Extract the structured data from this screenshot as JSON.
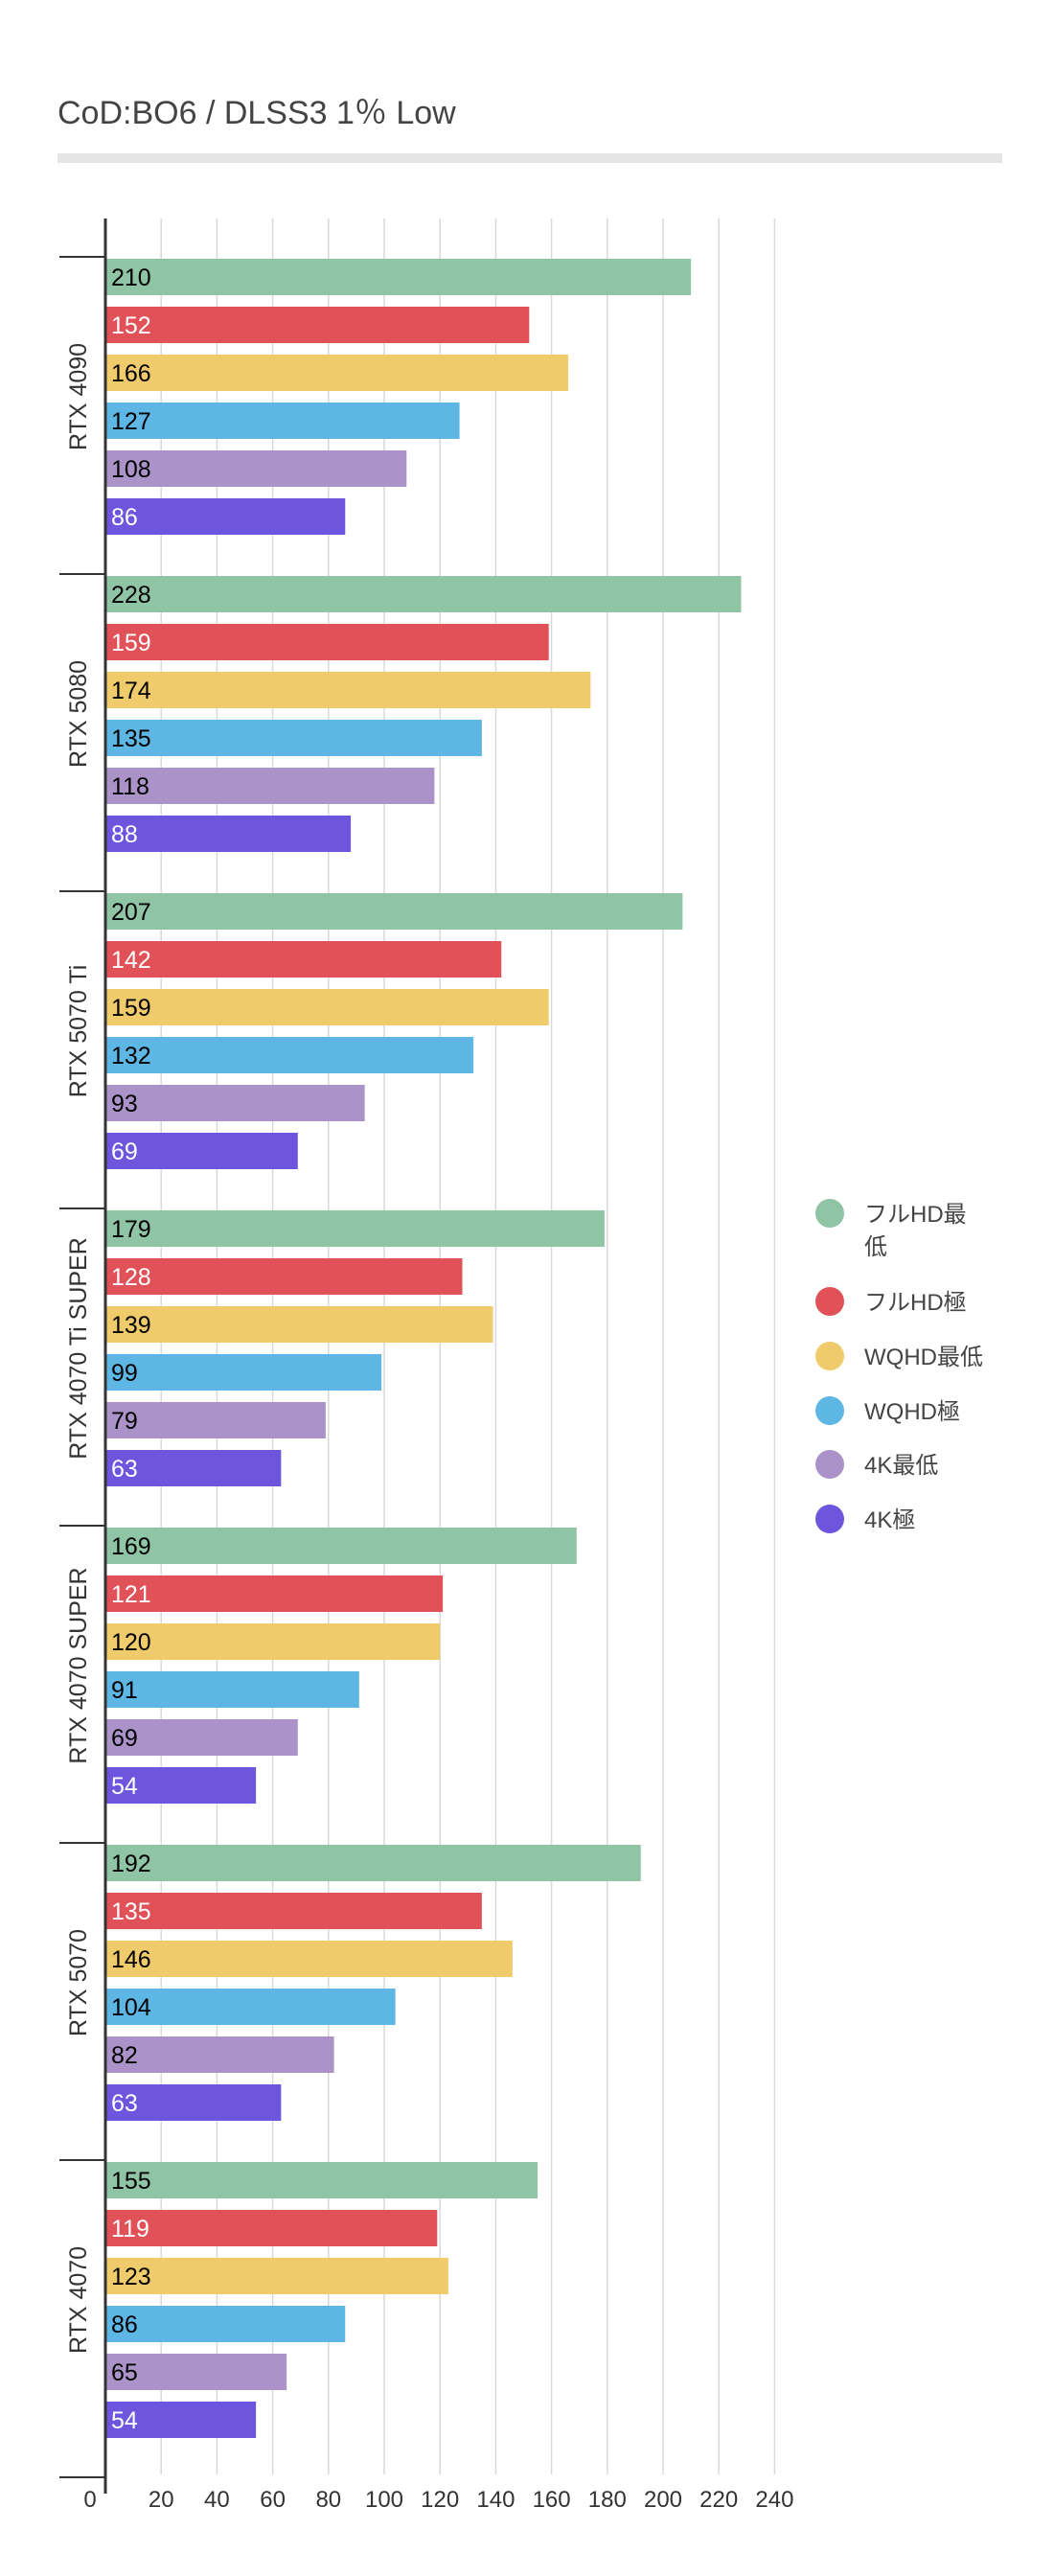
{
  "title": "CoD:BO6 /  DLSS3 1％ Low",
  "chart_data": {
    "type": "bar",
    "orientation": "horizontal",
    "title": "CoD:BO6 /  DLSS3 1％ Low",
    "xlabel": "",
    "ylabel": "",
    "xlim": [
      0,
      240
    ],
    "x_ticks": [
      0,
      20,
      40,
      60,
      80,
      100,
      120,
      140,
      160,
      180,
      200,
      220,
      240
    ],
    "grid": true,
    "legend_position": "right",
    "categories": [
      "RTX 4090",
      "RTX 5080",
      "RTX 5070 Ti",
      "RTX 4070 Ti SUPER",
      "RTX 4070 SUPER",
      "RTX 5070",
      "RTX 4070"
    ],
    "series": [
      {
        "name": "フルHD最低",
        "color": "#8fc4a5",
        "label_color": "#000000",
        "values": [
          210,
          228,
          207,
          179,
          169,
          192,
          155
        ]
      },
      {
        "name": "フルHD極",
        "color": "#e05257",
        "label_color": "#ffffff",
        "values": [
          152,
          159,
          142,
          128,
          121,
          135,
          119
        ]
      },
      {
        "name": "WQHD最低",
        "color": "#f0cb6b",
        "label_color": "#000000",
        "values": [
          166,
          174,
          159,
          139,
          120,
          146,
          123
        ]
      },
      {
        "name": "WQHD極",
        "color": "#5eb6e4",
        "label_color": "#000000",
        "values": [
          127,
          135,
          132,
          99,
          91,
          104,
          86
        ]
      },
      {
        "name": "4K最低",
        "color": "#ab92c9",
        "label_color": "#000000",
        "values": [
          108,
          118,
          93,
          79,
          69,
          82,
          65
        ]
      },
      {
        "name": "4K極",
        "color": "#6e55dd",
        "label_color": "#ffffff",
        "values": [
          86,
          88,
          69,
          63,
          54,
          63,
          54
        ]
      }
    ]
  }
}
